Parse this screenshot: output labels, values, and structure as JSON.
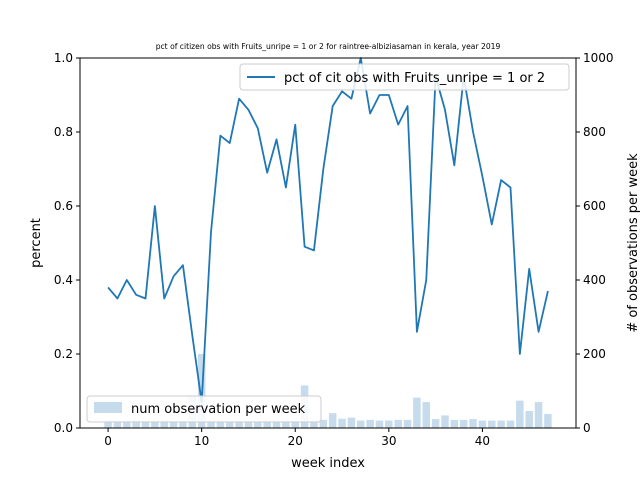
{
  "chart_data": {
    "type": "line",
    "title": "pct of citizen obs with Fruits_unripe = 1 or 2 for raintree-albiziasaman in kerala, year 2019",
    "xlabel": "week index",
    "ylabel": "percent",
    "y2label": "# of observations per week",
    "xlim": [
      -3,
      50
    ],
    "ylim": [
      0,
      1.0
    ],
    "y2lim": [
      0,
      1000
    ],
    "x_ticks": [
      0,
      10,
      20,
      30,
      40
    ],
    "y_ticks": [
      0.0,
      0.2,
      0.4,
      0.6,
      0.8,
      1.0
    ],
    "y2_ticks": [
      0,
      200,
      400,
      600,
      800,
      1000
    ],
    "grid": false,
    "legend_line_position": "top-right",
    "legend_bar_position": "bottom-left",
    "line_color": "#1f77b4",
    "bar_color": "#c6dbec",
    "series": [
      {
        "name": "pct of cit obs with Fruits_unripe = 1 or 2",
        "kind": "line",
        "axis": "left",
        "x": [
          0,
          1,
          2,
          3,
          4,
          5,
          6,
          7,
          8,
          9,
          10,
          11,
          12,
          13,
          14,
          15,
          16,
          17,
          18,
          19,
          20,
          21,
          22,
          23,
          24,
          25,
          26,
          27,
          28,
          29,
          30,
          31,
          32,
          33,
          34,
          35,
          36,
          37,
          38,
          39,
          40,
          41,
          42,
          43,
          44,
          45,
          46,
          47
        ],
        "values": [
          0.38,
          0.35,
          0.4,
          0.36,
          0.35,
          0.6,
          0.35,
          0.41,
          0.44,
          0.25,
          0.07,
          0.53,
          0.79,
          0.77,
          0.89,
          0.86,
          0.81,
          0.69,
          0.78,
          0.65,
          0.82,
          0.49,
          0.48,
          0.7,
          0.87,
          0.91,
          0.89,
          1.0,
          0.85,
          0.9,
          0.9,
          0.82,
          0.87,
          0.26,
          0.4,
          0.95,
          0.86,
          0.71,
          0.95,
          0.8,
          0.68,
          0.55,
          0.67,
          0.65,
          0.2,
          0.43,
          0.26,
          0.37
        ]
      },
      {
        "name": "num observation per week",
        "kind": "bar",
        "axis": "right",
        "x": [
          0,
          1,
          2,
          3,
          4,
          5,
          6,
          7,
          8,
          9,
          10,
          11,
          12,
          13,
          14,
          15,
          16,
          17,
          18,
          19,
          20,
          21,
          22,
          23,
          24,
          25,
          26,
          27,
          28,
          29,
          30,
          31,
          32,
          33,
          34,
          35,
          36,
          37,
          38,
          39,
          40,
          41,
          42,
          43,
          44,
          45,
          46,
          47
        ],
        "values": [
          20,
          20,
          20,
          22,
          20,
          20,
          20,
          20,
          20,
          88,
          200,
          20,
          20,
          20,
          20,
          20,
          20,
          20,
          20,
          20,
          20,
          115,
          20,
          22,
          40,
          25,
          28,
          20,
          22,
          20,
          20,
          22,
          22,
          82,
          70,
          24,
          34,
          22,
          22,
          24,
          20,
          20,
          20,
          20,
          74,
          46,
          70,
          38
        ]
      }
    ]
  }
}
